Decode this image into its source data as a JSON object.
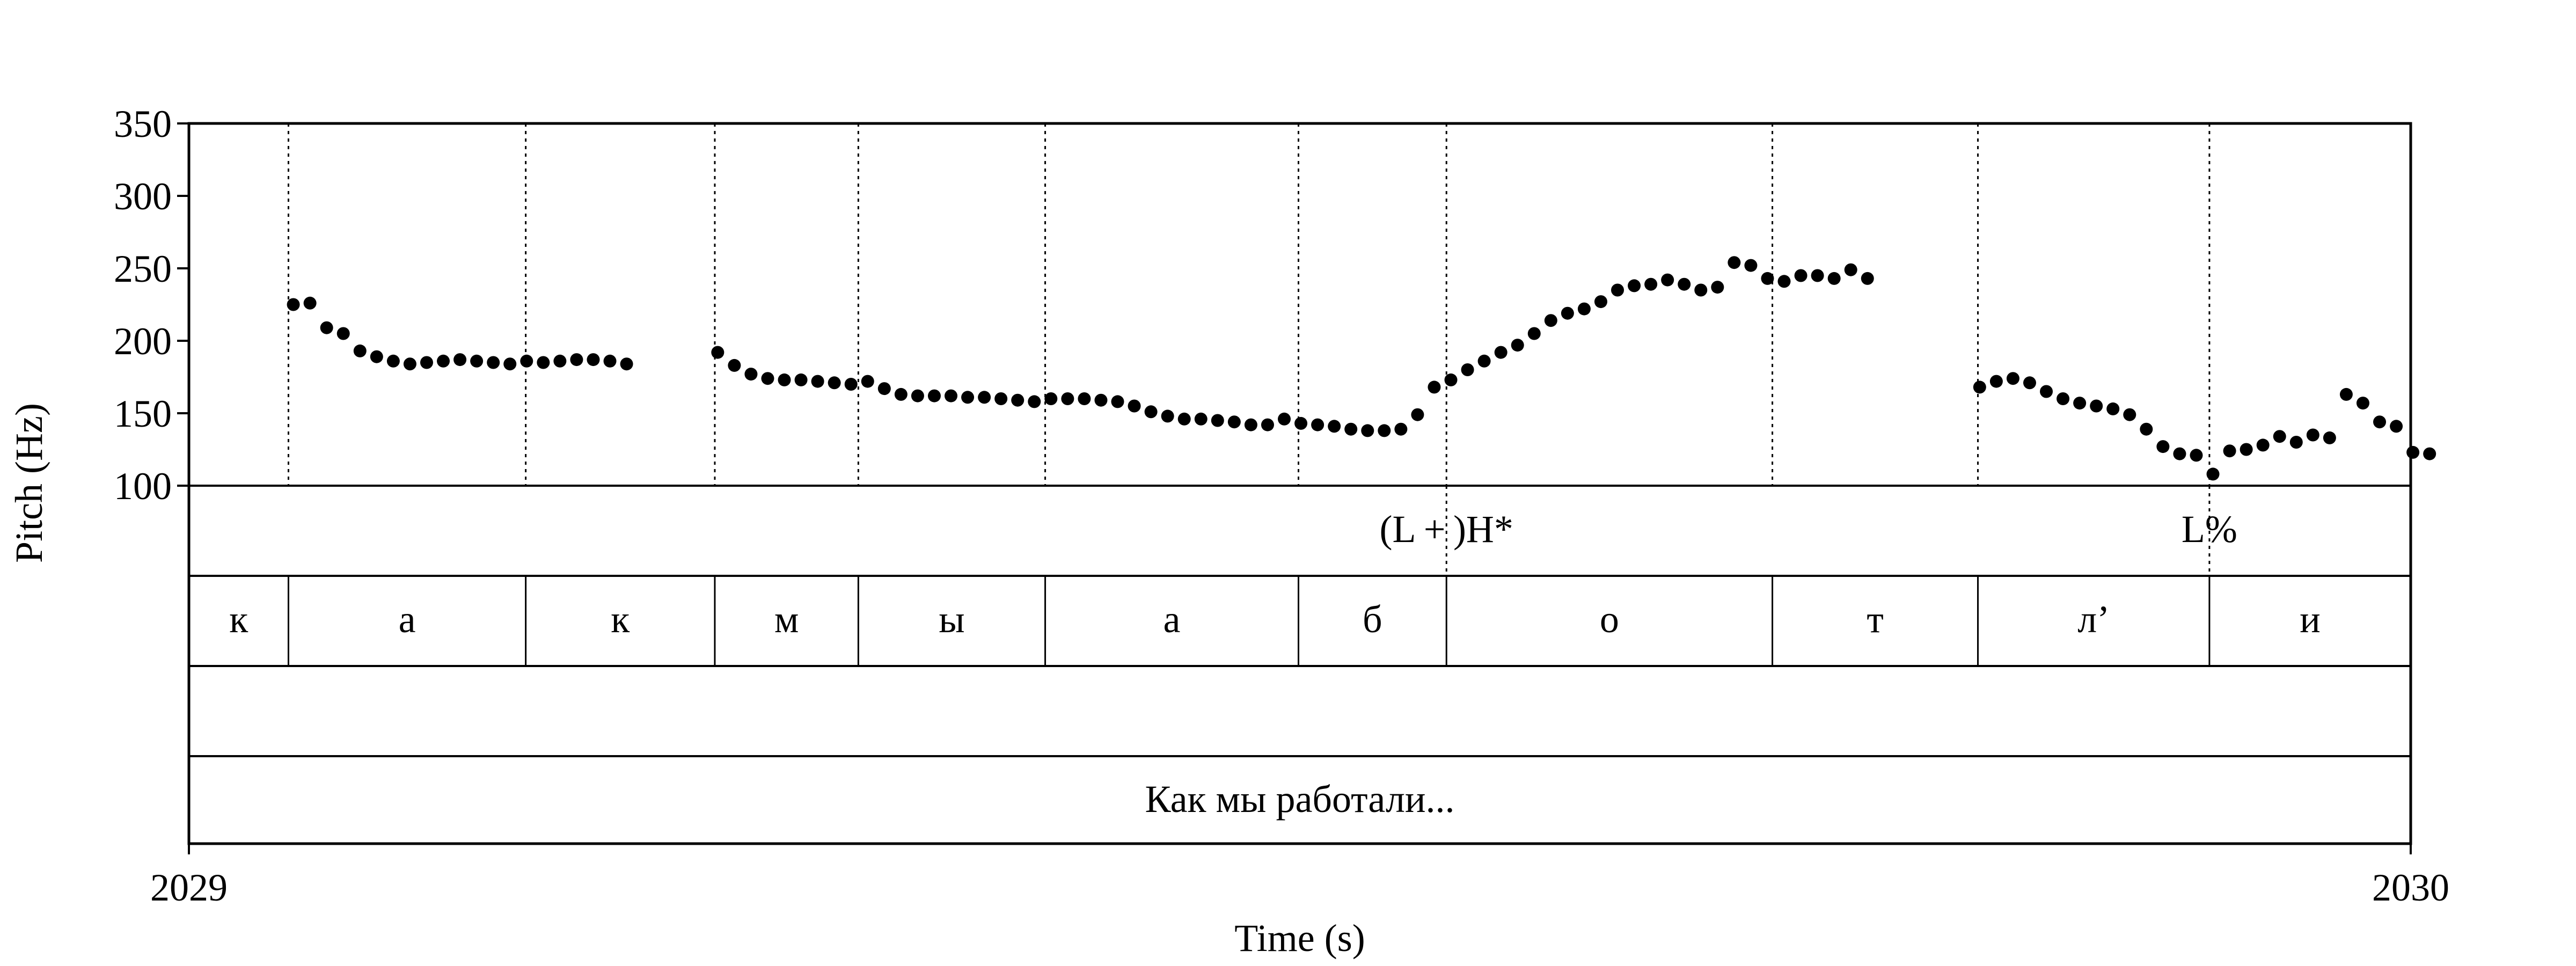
{
  "chart_data": {
    "type": "scatter",
    "title": "",
    "xlabel": "Time (s)",
    "ylabel": "Pitch (Hz)",
    "xlim": [
      2029,
      2030
    ],
    "ylim": [
      100,
      350
    ],
    "x_ticks": [
      "2029",
      "2030"
    ],
    "y_ticks": [
      100,
      150,
      200,
      250,
      300,
      350
    ],
    "y_tick_labels": [
      "100",
      "150",
      "200",
      "250",
      "300",
      "350"
    ],
    "segment_boundaries": [
      2029.0448,
      2029.1516,
      2029.2367,
      2029.3013,
      2029.3854,
      2029.4994,
      2029.566,
      2029.7127,
      2029.8052,
      2029.9094
    ],
    "tones": [
      {
        "time": 2029.566,
        "label": "(L + )H*"
      },
      {
        "time": 2029.9094,
        "label": "L%"
      }
    ],
    "segments": [
      {
        "start": 2029.0,
        "end": 2029.0448,
        "label": "к"
      },
      {
        "start": 2029.0448,
        "end": 2029.1516,
        "label": "а"
      },
      {
        "start": 2029.1516,
        "end": 2029.2367,
        "label": "к"
      },
      {
        "start": 2029.2367,
        "end": 2029.3013,
        "label": "м"
      },
      {
        "start": 2029.3013,
        "end": 2029.3854,
        "label": "ы"
      },
      {
        "start": 2029.3854,
        "end": 2029.4994,
        "label": "а"
      },
      {
        "start": 2029.4994,
        "end": 2029.566,
        "label": "б"
      },
      {
        "start": 2029.566,
        "end": 2029.7127,
        "label": "о"
      },
      {
        "start": 2029.7127,
        "end": 2029.8052,
        "label": "т"
      },
      {
        "start": 2029.8052,
        "end": 2029.9094,
        "label": "л’"
      },
      {
        "start": 2029.9094,
        "end": 2030.0,
        "label": "и"
      }
    ],
    "phrase": "Как мы работали...",
    "pitch": [
      [
        2029.047,
        225
      ],
      [
        2029.0545,
        226
      ],
      [
        2029.062,
        209
      ],
      [
        2029.0695,
        205
      ],
      [
        2029.077,
        193
      ],
      [
        2029.0845,
        189
      ],
      [
        2029.092,
        186
      ],
      [
        2029.0995,
        184
      ],
      [
        2029.107,
        185
      ],
      [
        2029.1145,
        186
      ],
      [
        2029.122,
        187
      ],
      [
        2029.1295,
        186
      ],
      [
        2029.137,
        185
      ],
      [
        2029.1445,
        184
      ],
      [
        2029.152,
        186
      ],
      [
        2029.1595,
        185
      ],
      [
        2029.167,
        186
      ],
      [
        2029.1745,
        187
      ],
      [
        2029.182,
        187
      ],
      [
        2029.1895,
        186
      ],
      [
        2029.197,
        184
      ],
      [
        2029.238,
        192
      ],
      [
        2029.2455,
        183
      ],
      [
        2029.253,
        177
      ],
      [
        2029.2605,
        174
      ],
      [
        2029.268,
        173
      ],
      [
        2029.2755,
        173
      ],
      [
        2029.283,
        172
      ],
      [
        2029.2905,
        171
      ],
      [
        2029.298,
        170
      ],
      [
        2029.3055,
        172
      ],
      [
        2029.313,
        167
      ],
      [
        2029.3205,
        163
      ],
      [
        2029.328,
        162
      ],
      [
        2029.3355,
        162
      ],
      [
        2029.343,
        162
      ],
      [
        2029.3505,
        161
      ],
      [
        2029.358,
        161
      ],
      [
        2029.3655,
        160
      ],
      [
        2029.373,
        159
      ],
      [
        2029.3805,
        158
      ],
      [
        2029.388,
        160
      ],
      [
        2029.3955,
        160
      ],
      [
        2029.403,
        160
      ],
      [
        2029.4105,
        159
      ],
      [
        2029.418,
        158
      ],
      [
        2029.4255,
        155
      ],
      [
        2029.433,
        151
      ],
      [
        2029.4405,
        148
      ],
      [
        2029.448,
        146
      ],
      [
        2029.4555,
        146
      ],
      [
        2029.463,
        145
      ],
      [
        2029.4705,
        144
      ],
      [
        2029.478,
        142
      ],
      [
        2029.4855,
        142
      ],
      [
        2029.493,
        146
      ],
      [
        2029.5005,
        143
      ],
      [
        2029.508,
        142
      ],
      [
        2029.5155,
        141
      ],
      [
        2029.523,
        139
      ],
      [
        2029.5305,
        138
      ],
      [
        2029.538,
        138
      ],
      [
        2029.5455,
        139
      ],
      [
        2029.553,
        149
      ],
      [
        2029.5605,
        168
      ],
      [
        2029.568,
        173
      ],
      [
        2029.5755,
        180
      ],
      [
        2029.583,
        186
      ],
      [
        2029.5905,
        192
      ],
      [
        2029.598,
        197
      ],
      [
        2029.6055,
        205
      ],
      [
        2029.613,
        214
      ],
      [
        2029.6205,
        219
      ],
      [
        2029.628,
        222
      ],
      [
        2029.6355,
        227
      ],
      [
        2029.643,
        235
      ],
      [
        2029.6505,
        238
      ],
      [
        2029.658,
        239
      ],
      [
        2029.6655,
        242
      ],
      [
        2029.673,
        239
      ],
      [
        2029.6805,
        235
      ],
      [
        2029.688,
        237
      ],
      [
        2029.6955,
        254
      ],
      [
        2029.703,
        252
      ],
      [
        2029.7105,
        243
      ],
      [
        2029.718,
        241
      ],
      [
        2029.7255,
        245
      ],
      [
        2029.733,
        245
      ],
      [
        2029.7405,
        243
      ],
      [
        2029.748,
        249
      ],
      [
        2029.7555,
        243
      ],
      [
        2029.806,
        168
      ],
      [
        2029.8135,
        172
      ],
      [
        2029.821,
        174
      ],
      [
        2029.8285,
        171
      ],
      [
        2029.836,
        165
      ],
      [
        2029.8435,
        160
      ],
      [
        2029.851,
        157
      ],
      [
        2029.8585,
        155
      ],
      [
        2029.866,
        153
      ],
      [
        2029.8735,
        149
      ],
      [
        2029.881,
        139
      ],
      [
        2029.8885,
        127
      ],
      [
        2029.896,
        122
      ],
      [
        2029.9035,
        121
      ],
      [
        2029.911,
        108
      ],
      [
        2029.9185,
        124
      ],
      [
        2029.926,
        125
      ],
      [
        2029.9335,
        128
      ],
      [
        2029.941,
        134
      ],
      [
        2029.9485,
        130
      ],
      [
        2029.956,
        135
      ],
      [
        2029.9635,
        133
      ],
      [
        2029.971,
        163
      ],
      [
        2029.9785,
        157
      ],
      [
        2029.986,
        144
      ],
      [
        2029.9935,
        141
      ],
      [
        2030.001,
        123
      ],
      [
        2030.0085,
        122
      ]
    ]
  }
}
